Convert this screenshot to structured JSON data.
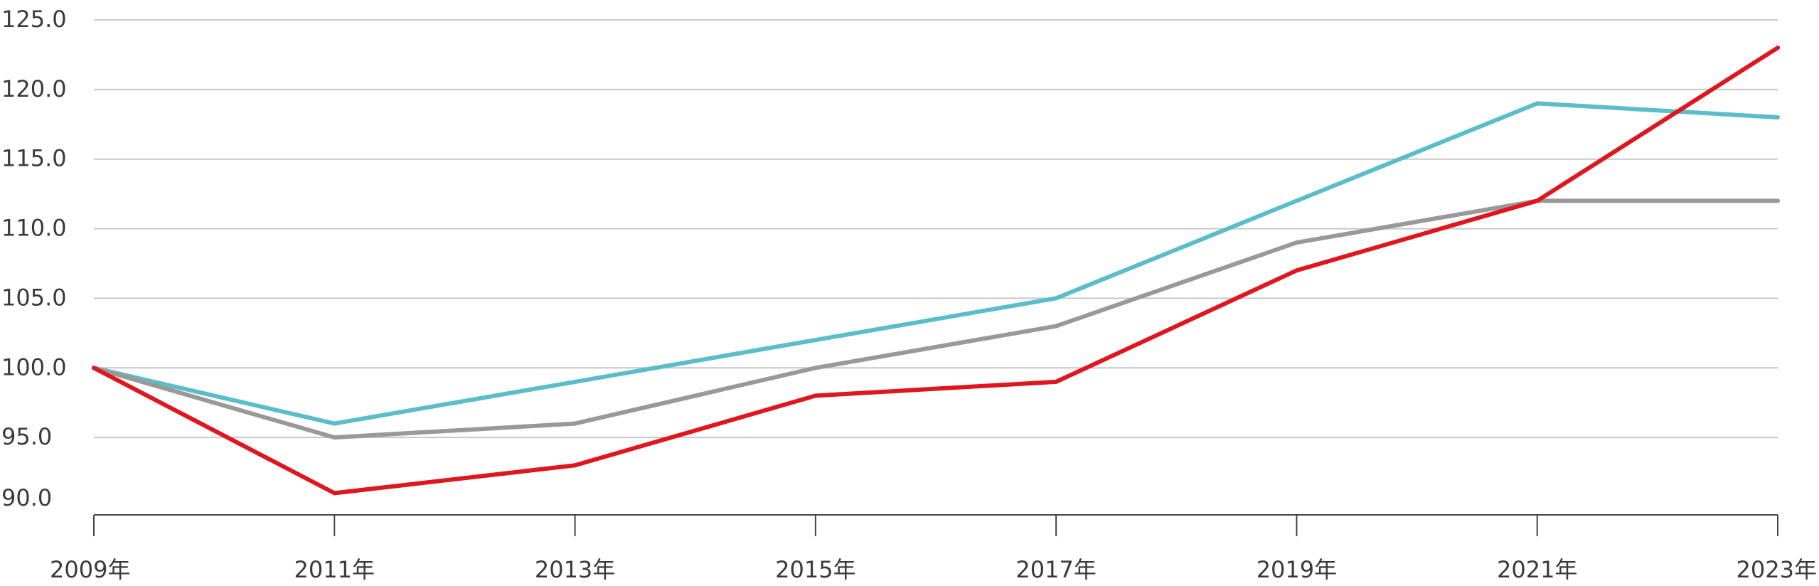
{
  "chart_data": {
    "type": "line",
    "title": "",
    "xlabel": "",
    "ylabel": "",
    "x": [
      "2009年",
      "2011年",
      "2013年",
      "2015年",
      "2017年",
      "2019年",
      "2021年",
      "2023年"
    ],
    "y_ticks": [
      "90.0",
      "95.0",
      "100.0",
      "105.0",
      "110.0",
      "115.0",
      "120.0",
      "125.0"
    ],
    "ylim": [
      90,
      125
    ],
    "grid": true,
    "legend": "none",
    "series": [
      {
        "color": "#5bbdc9",
        "values": [
          100,
          96,
          99,
          102,
          105,
          112,
          119,
          118
        ]
      },
      {
        "color": "#999999",
        "values": [
          100,
          95,
          96,
          100,
          103,
          109,
          112,
          112
        ]
      },
      {
        "color": "#e0161e",
        "values": [
          100,
          91,
          93,
          98,
          99,
          107,
          112,
          123
        ]
      }
    ]
  }
}
